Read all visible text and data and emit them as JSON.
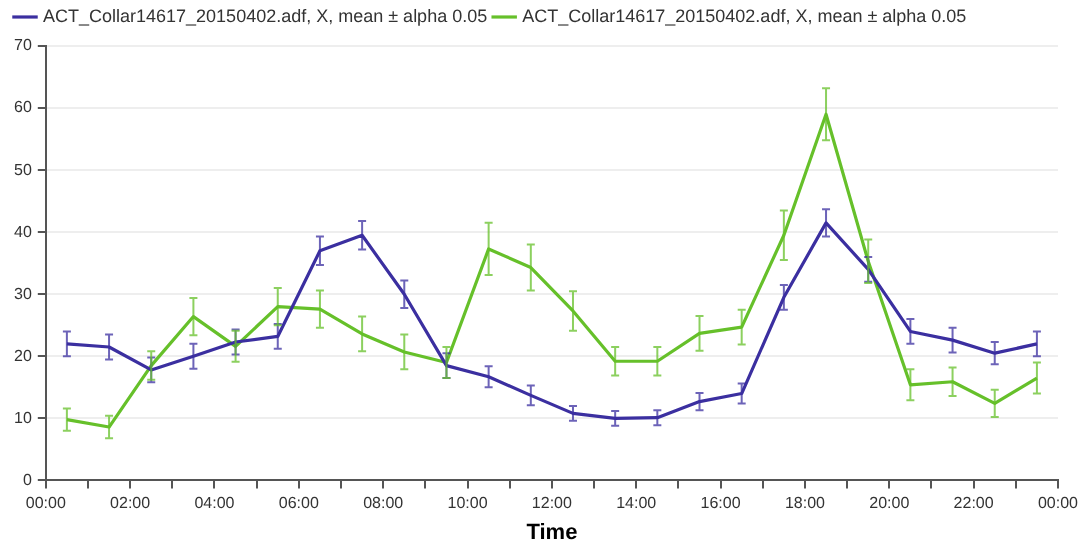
{
  "chart_data": {
    "type": "line",
    "xlabel": "Time",
    "legend": "top left",
    "grid": "y",
    "marker": "none",
    "line_style": "solid",
    "x": [
      0.5,
      1.5,
      2.5,
      3.5,
      4.5,
      5.5,
      6.5,
      7.5,
      8.5,
      9.5,
      10.5,
      11.5,
      12.5,
      13.5,
      14.5,
      15.5,
      16.5,
      17.5,
      18.5,
      19.5,
      20.5,
      21.5,
      22.5,
      23.5
    ],
    "xlim": [
      0,
      24
    ],
    "xticks": [
      {
        "value": 0,
        "label": "00:00"
      },
      {
        "value": 1,
        "label": null
      },
      {
        "value": 2,
        "label": "02:00"
      },
      {
        "value": 3,
        "label": null
      },
      {
        "value": 4,
        "label": "04:00"
      },
      {
        "value": 5,
        "label": null
      },
      {
        "value": 6,
        "label": "06:00"
      },
      {
        "value": 7,
        "label": null
      },
      {
        "value": 8,
        "label": "08:00"
      },
      {
        "value": 9,
        "label": null
      },
      {
        "value": 10,
        "label": "10:00"
      },
      {
        "value": 11,
        "label": null
      },
      {
        "value": 12,
        "label": "12:00"
      },
      {
        "value": 13,
        "label": null
      },
      {
        "value": 14,
        "label": "14:00"
      },
      {
        "value": 15,
        "label": null
      },
      {
        "value": 16,
        "label": "16:00"
      },
      {
        "value": 17,
        "label": null
      },
      {
        "value": 18,
        "label": "18:00"
      },
      {
        "value": 19,
        "label": null
      },
      {
        "value": 20,
        "label": "20:00"
      },
      {
        "value": 21,
        "label": null
      },
      {
        "value": 22,
        "label": "22:00"
      },
      {
        "value": 23,
        "label": null
      },
      {
        "value": 24,
        "label": "00:00"
      }
    ],
    "ylim": [
      0,
      70
    ],
    "yticks": [
      0,
      10,
      20,
      30,
      40,
      50,
      60,
      70
    ],
    "series": [
      {
        "name": "ACT_Collar14617_20150402.adf, X, mean ± alpha 0.05",
        "color": "#3b2fa0",
        "values": [
          22,
          21.5,
          17.8,
          20,
          22.3,
          23.2,
          37,
          39.5,
          30,
          18.5,
          16.7,
          13.7,
          10.8,
          10,
          10.1,
          12.7,
          14,
          29.5,
          41.5,
          34,
          24,
          22.6,
          20.5,
          22
        ],
        "errors": [
          2,
          2,
          2,
          2,
          2,
          2,
          2.3,
          2.3,
          2.2,
          2,
          1.7,
          1.6,
          1.2,
          1.2,
          1.2,
          1.4,
          1.6,
          2,
          2.2,
          2,
          2,
          2,
          1.8,
          2
        ]
      },
      {
        "name": "ACT_Collar14617_20150402.adf, X, mean ± alpha 0.05",
        "color": "#66c02a",
        "values": [
          9.8,
          8.6,
          18.5,
          26.4,
          21.6,
          28,
          27.6,
          23.6,
          20.7,
          19,
          37.3,
          34.3,
          27.3,
          19.2,
          19.2,
          23.7,
          24.7,
          39.5,
          59,
          35.3,
          15.4,
          15.9,
          12.4,
          16.5
        ],
        "errors": [
          1.8,
          1.8,
          2.3,
          3,
          2.5,
          3,
          3,
          2.8,
          2.8,
          2.5,
          4.2,
          3.7,
          3.2,
          2.3,
          2.3,
          2.8,
          2.8,
          4,
          4.2,
          3.5,
          2.5,
          2.3,
          2.2,
          2.5
        ]
      }
    ]
  }
}
